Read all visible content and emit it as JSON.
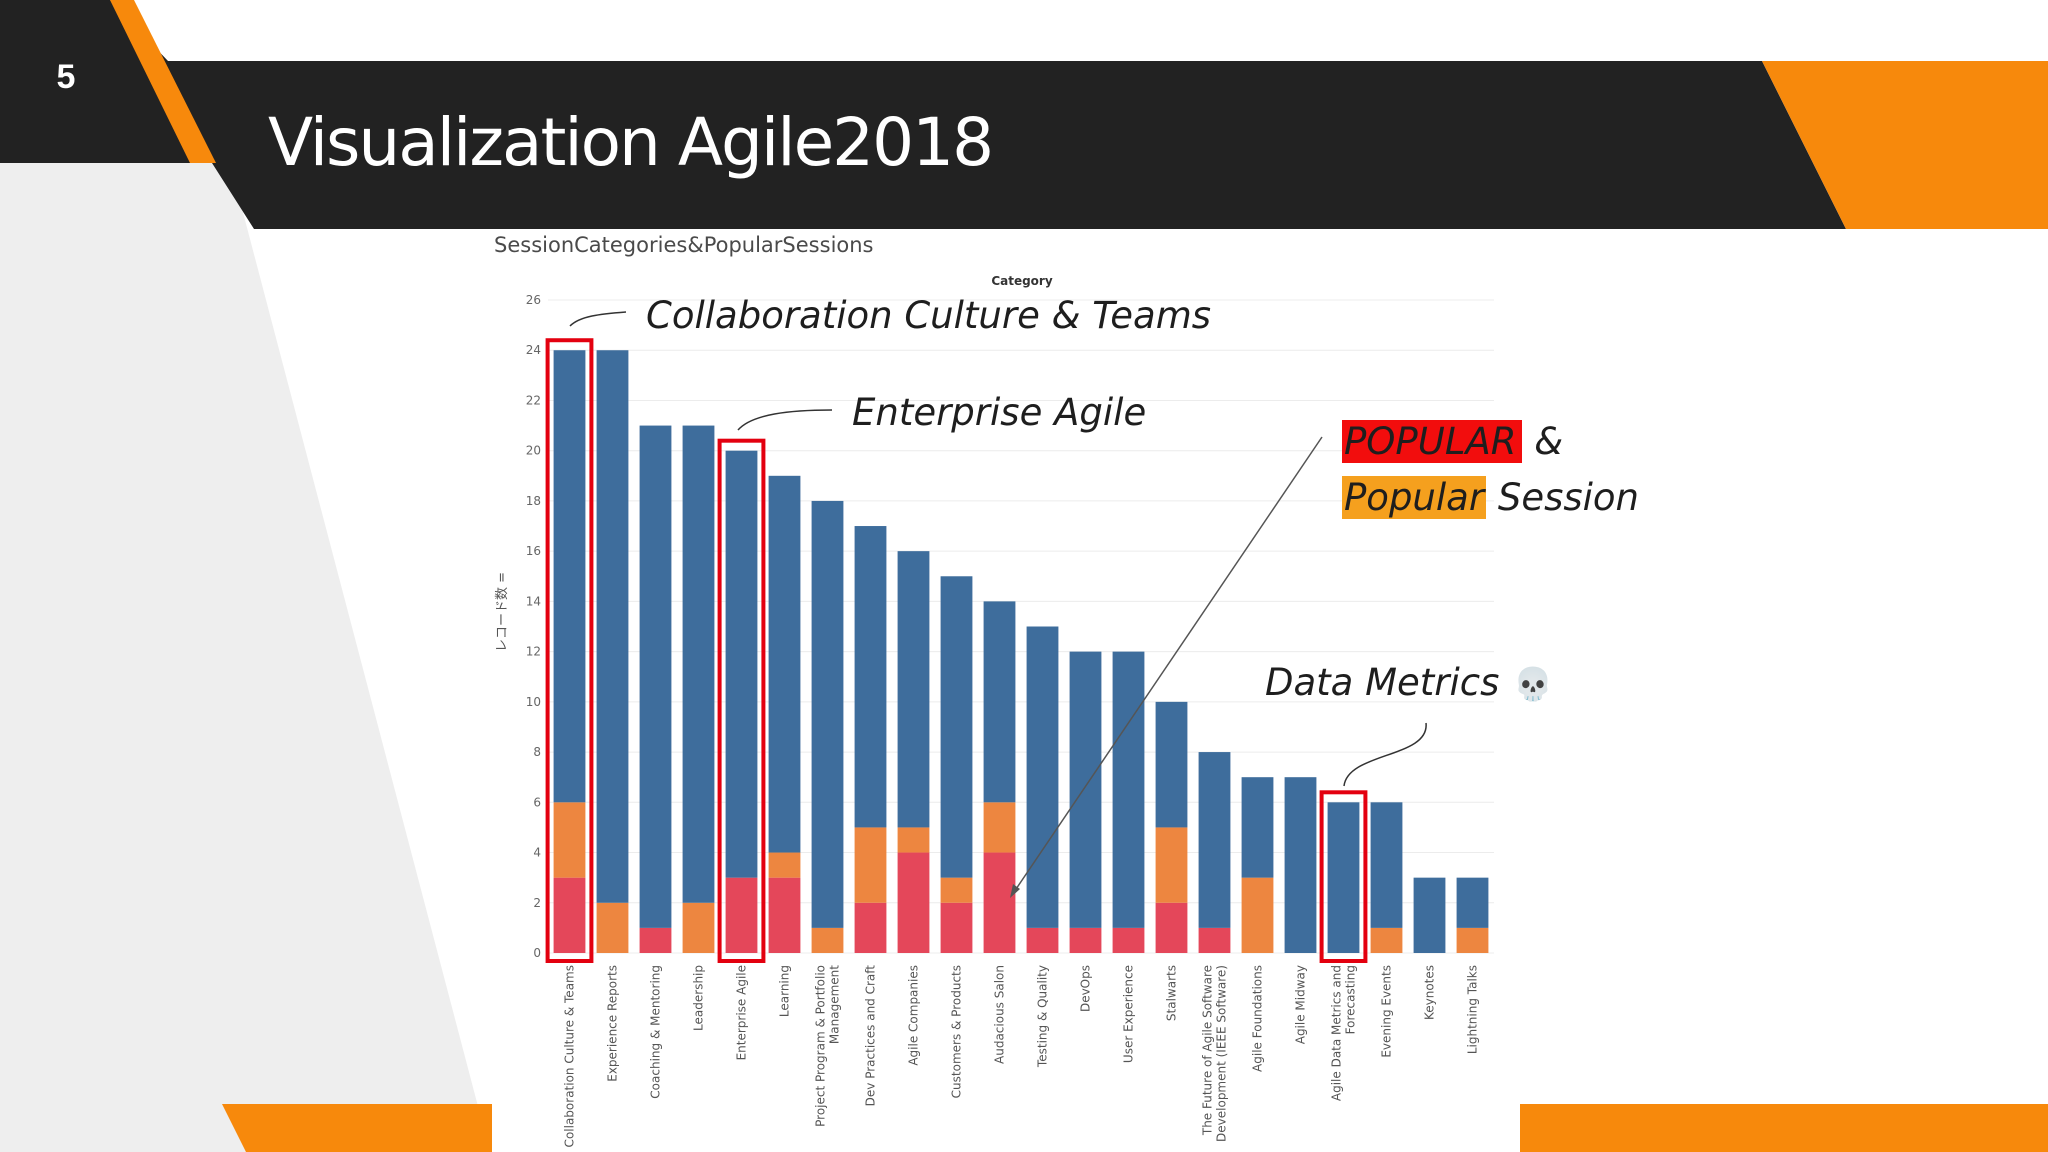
{
  "slide": {
    "number": "5",
    "title": "Visualization Agile2018"
  },
  "colors": {
    "dark_band": "#222222",
    "accent_orange": "#f7890c",
    "light_gray_panel": "#eeeeee",
    "bar_blue": "#3e6d9c",
    "bar_orange": "#ed8640",
    "bar_red": "#e4475a",
    "highlight_box": "#e3000f"
  },
  "annotations": {
    "collab": "Collaboration Culture & Teams",
    "enterprise": "Enterprise Agile",
    "data_metrics": "Data Metrics",
    "data_metrics_icon": "skull-icon",
    "legend_popular_caps": "POPULAR",
    "legend_amp": "&",
    "legend_popular": "Popular",
    "legend_session": "Session"
  },
  "chart_data": {
    "type": "bar",
    "stacked": true,
    "title": "SessionCategories&PopularSessions",
    "column_header": "Category",
    "ylabel": "レコード数 =",
    "ylim": [
      0,
      26
    ],
    "yticks": [
      0,
      2,
      4,
      6,
      8,
      10,
      12,
      14,
      16,
      18,
      20,
      22,
      24,
      26
    ],
    "grid": true,
    "categories": [
      [
        "Collaboration Culture & Teams"
      ],
      [
        "Experience Reports"
      ],
      [
        "Coaching & Mentoring"
      ],
      [
        "Leadership"
      ],
      [
        "Enterprise Agile"
      ],
      [
        "Learning"
      ],
      [
        "Project Program & Portfolio",
        "Management"
      ],
      [
        "Dev Practices and Craft"
      ],
      [
        "Agile Companies"
      ],
      [
        "Customers & Products"
      ],
      [
        "Audacious Salon"
      ],
      [
        "Testing & Quality"
      ],
      [
        "DevOps"
      ],
      [
        "User Experience"
      ],
      [
        "Stalwarts"
      ],
      [
        "The Future of Agile Software",
        "Development (IEEE Software)"
      ],
      [
        "Agile Foundations"
      ],
      [
        "Agile Midway"
      ],
      [
        "Agile Data Metrics and",
        "Forecasting"
      ],
      [
        "Evening Events"
      ],
      [
        "Keynotes"
      ],
      [
        "Lightning Talks"
      ]
    ],
    "totals": [
      24,
      24,
      21,
      21,
      20,
      19,
      18,
      17,
      16,
      15,
      14,
      13,
      12,
      12,
      10,
      8,
      7,
      7,
      6,
      6,
      3,
      3
    ],
    "series": [
      {
        "name": "POPULAR",
        "color": "#e4475a",
        "values": [
          3,
          0,
          1,
          0,
          3,
          3,
          0,
          2,
          4,
          2,
          4,
          1,
          1,
          1,
          2,
          1,
          0,
          0,
          0,
          0,
          0,
          0
        ]
      },
      {
        "name": "Popular",
        "color": "#ed8640",
        "values": [
          3,
          2,
          0,
          2,
          0,
          1,
          1,
          3,
          1,
          1,
          2,
          0,
          0,
          0,
          3,
          0,
          3,
          0,
          0,
          1,
          0,
          1
        ]
      },
      {
        "color": "#3e6d9c",
        "values": [
          18,
          22,
          20,
          19,
          17,
          15,
          17,
          12,
          11,
          12,
          8,
          12,
          11,
          11,
          5,
          7,
          4,
          7,
          6,
          5,
          3,
          2
        ]
      }
    ],
    "highlighted": [
      0,
      4,
      18
    ]
  }
}
